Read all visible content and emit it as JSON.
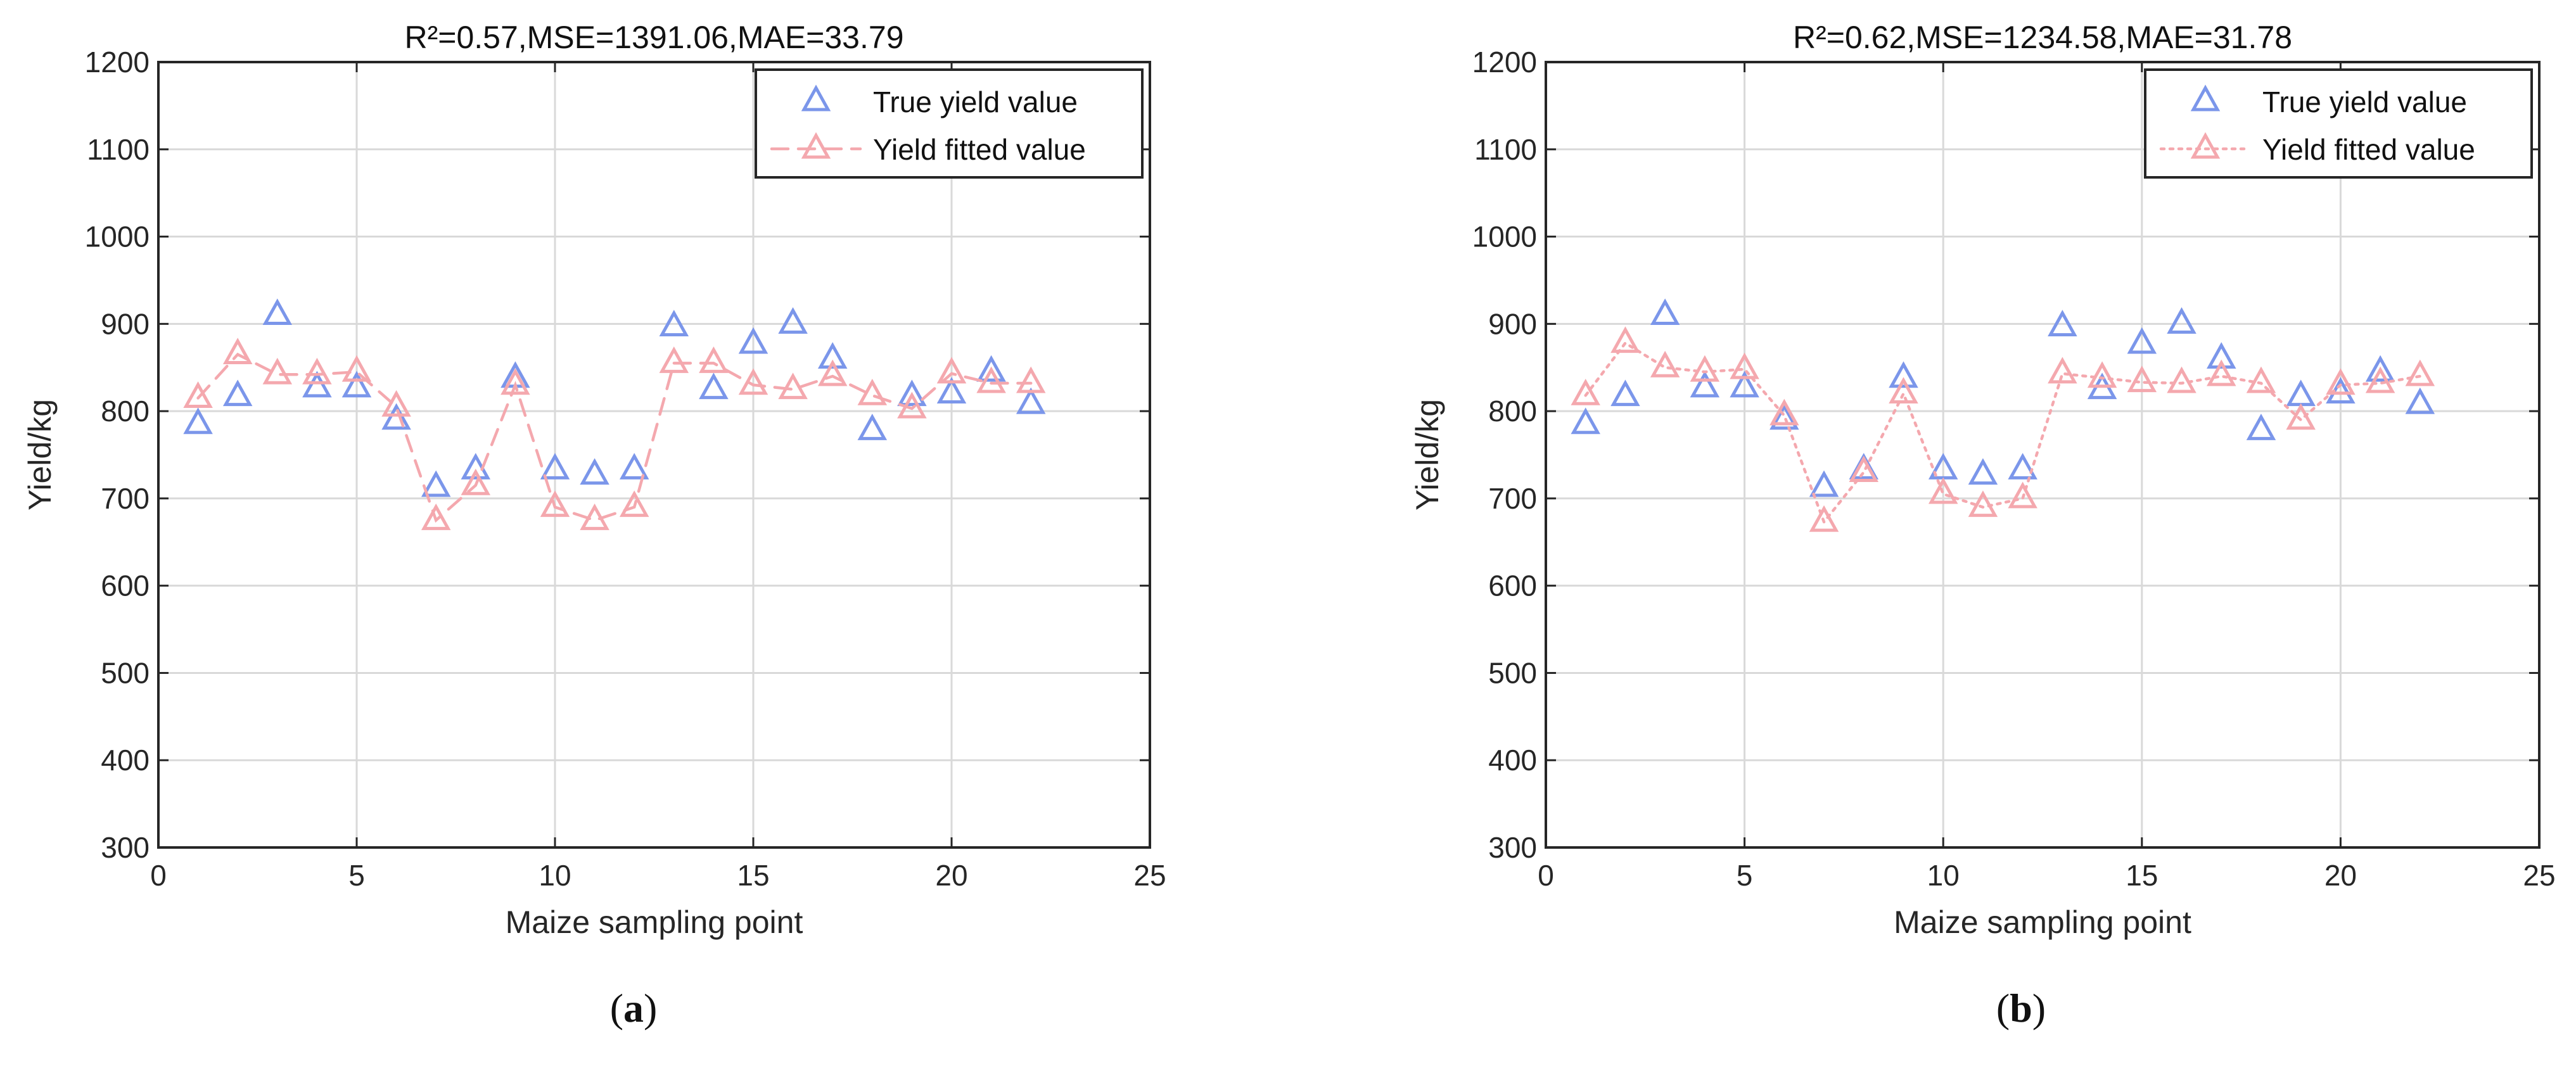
{
  "chart_data": [
    {
      "panel": "a",
      "type": "line",
      "title": "R²=0.57,MSE=1391.06,MAE=33.79",
      "xlabel": "Maize sampling point",
      "ylabel": "Yield/kg",
      "xlim": [
        0,
        25
      ],
      "ylim": [
        300,
        1200
      ],
      "xticks": [
        0,
        5,
        10,
        15,
        20,
        25
      ],
      "yticks": [
        300,
        400,
        500,
        600,
        700,
        800,
        900,
        1000,
        1100,
        1200
      ],
      "grid": true,
      "legend_position": "top-right",
      "x": [
        1,
        2,
        3,
        4,
        5,
        6,
        7,
        8,
        9,
        10,
        11,
        12,
        13,
        14,
        15,
        16,
        17,
        18,
        19,
        20,
        21,
        22
      ],
      "series": [
        {
          "name": "True yield value",
          "style": "markers",
          "color": "#7b96ea",
          "values": [
            785,
            817,
            910,
            827,
            827,
            790,
            713,
            733,
            838,
            733,
            727,
            733,
            897,
            825,
            877,
            900,
            860,
            778,
            817,
            820,
            845,
            808
          ]
        },
        {
          "name": "Yield fitted value",
          "style": "dashed",
          "color": "#f4a8ae",
          "values": [
            815,
            865,
            842,
            842,
            845,
            805,
            675,
            715,
            830,
            690,
            675,
            690,
            855,
            855,
            830,
            825,
            840,
            818,
            803,
            843,
            832,
            832
          ]
        }
      ]
    },
    {
      "panel": "b",
      "type": "line",
      "title": "R²=0.62,MSE=1234.58,MAE=31.78",
      "xlabel": "Maize sampling point",
      "ylabel": "Yield/kg",
      "xlim": [
        0,
        25
      ],
      "ylim": [
        300,
        1200
      ],
      "xticks": [
        0,
        5,
        10,
        15,
        20,
        25
      ],
      "yticks": [
        300,
        400,
        500,
        600,
        700,
        800,
        900,
        1000,
        1100,
        1200
      ],
      "grid": true,
      "legend_position": "top-right",
      "x": [
        1,
        2,
        3,
        4,
        5,
        6,
        7,
        8,
        9,
        10,
        11,
        12,
        13,
        14,
        15,
        16,
        17,
        18,
        19,
        20,
        21,
        22
      ],
      "series": [
        {
          "name": "True yield value",
          "style": "markers",
          "color": "#7b96ea",
          "values": [
            785,
            817,
            910,
            827,
            827,
            790,
            713,
            733,
            838,
            733,
            727,
            733,
            897,
            825,
            877,
            900,
            860,
            778,
            817,
            820,
            845,
            808
          ]
        },
        {
          "name": "Yield fitted value",
          "style": "dotted",
          "color": "#f4a8ae",
          "values": [
            818,
            878,
            850,
            845,
            848,
            795,
            673,
            730,
            820,
            705,
            690,
            700,
            843,
            838,
            833,
            832,
            840,
            832,
            790,
            830,
            832,
            840
          ]
        }
      ]
    }
  ],
  "captions": {
    "a": "a",
    "b": "b"
  }
}
